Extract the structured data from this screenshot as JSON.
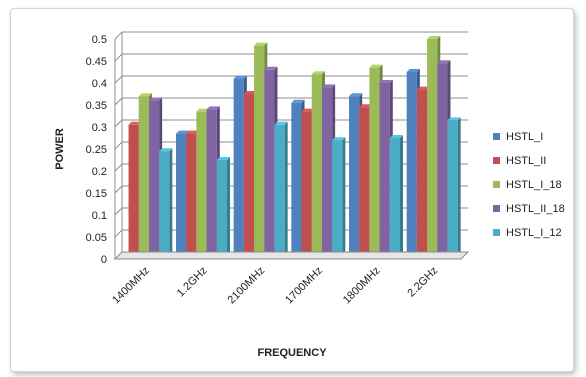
{
  "chart_data": {
    "type": "bar",
    "title": "",
    "xlabel": "FREQUENCY",
    "ylabel": "POWER",
    "ylim": [
      0,
      0.5
    ],
    "yticks": [
      "0",
      "0.05",
      "0.1",
      "0.15",
      "0.2",
      "0.25",
      "0.3",
      "0.35",
      "0.4",
      "0.45",
      "0.5"
    ],
    "categories": [
      "1400MHz",
      "1.2GHz",
      "2100MHz",
      "1700MHz",
      "1800MHz",
      "2.2GHz"
    ],
    "series": [
      {
        "name": "HSTL_I",
        "color": "#4f81bd",
        "values": [
          0.0,
          0.285,
          0.41,
          0.355,
          0.37,
          0.425
        ]
      },
      {
        "name": "HSTL_II",
        "color": "#c0504d",
        "values": [
          0.305,
          0.285,
          0.375,
          0.335,
          0.345,
          0.385
        ]
      },
      {
        "name": "HSTL_I_18",
        "color": "#9bbb59",
        "values": [
          0.37,
          0.335,
          0.485,
          0.42,
          0.435,
          0.5
        ]
      },
      {
        "name": "HSTL_II_18",
        "color": "#8064a2",
        "values": [
          0.36,
          0.34,
          0.43,
          0.39,
          0.4,
          0.445
        ]
      },
      {
        "name": "HSTL_I_12",
        "color": "#4bacc6",
        "values": [
          0.245,
          0.225,
          0.305,
          0.27,
          0.275,
          0.315
        ]
      }
    ],
    "grid": true,
    "legend": "right"
  }
}
